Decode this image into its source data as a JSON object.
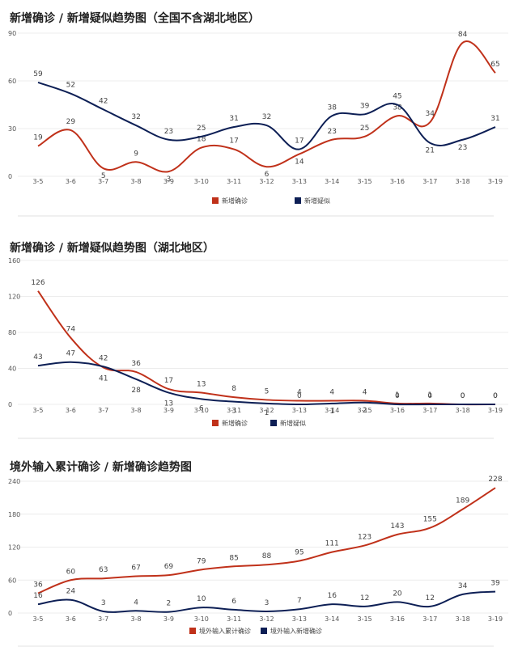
{
  "chart_data": [
    {
      "type": "line",
      "title": "新增确诊 / 新增疑似趋势图（全国不含湖北地区）",
      "categories": [
        "3-5",
        "3-6",
        "3-7",
        "3-8",
        "3-9",
        "3-10",
        "3-11",
        "3-12",
        "3-13",
        "3-14",
        "3-15",
        "3-16",
        "3-17",
        "3-18",
        "3-19"
      ],
      "ylim": [
        0,
        90
      ],
      "yticks": [
        0,
        30,
        60,
        90
      ],
      "grid": true,
      "legend_position": "bottom",
      "series": [
        {
          "name": "新增确诊",
          "color": "#c0311a",
          "values": [
            19,
            29,
            5,
            9,
            3,
            18,
            17,
            6,
            14,
            23,
            25,
            38,
            34,
            84,
            65
          ]
        },
        {
          "name": "新增疑似",
          "color": "#0d1f55",
          "values": [
            59,
            52,
            42,
            32,
            23,
            25,
            31,
            32,
            17,
            38,
            39,
            45,
            21,
            23,
            31
          ]
        }
      ]
    },
    {
      "type": "line",
      "title": "新增确诊 / 新增疑似趋势图（湖北地区）",
      "categories": [
        "3-5",
        "3-6",
        "3-7",
        "3-8",
        "3-9",
        "3-10",
        "3-11",
        "3-12",
        "3-13",
        "3-14",
        "3-15",
        "3-16",
        "3-17",
        "3-18",
        "3-19"
      ],
      "ylim": [
        0,
        160
      ],
      "yticks": [
        0,
        40,
        80,
        120,
        160
      ],
      "grid": true,
      "legend_position": "bottom",
      "series": [
        {
          "name": "新增确诊",
          "color": "#c0311a",
          "values": [
            126,
            74,
            41,
            36,
            17,
            13,
            8,
            5,
            4,
            4,
            4,
            1,
            1,
            0,
            0
          ]
        },
        {
          "name": "新增疑似",
          "color": "#0d1f55",
          "values": [
            43,
            47,
            42,
            28,
            13,
            6,
            3,
            1,
            0,
            1,
            2,
            0,
            0,
            0,
            0
          ]
        }
      ]
    },
    {
      "type": "line",
      "title": "境外输入累计确诊 / 新增确诊趋势图",
      "categories": [
        "3-5",
        "3-6",
        "3-7",
        "3-8",
        "3-9",
        "3-10",
        "3-11",
        "3-12",
        "3-13",
        "3-14",
        "3-15",
        "3-16",
        "3-17",
        "3-18",
        "3-19"
      ],
      "ylim": [
        0,
        240
      ],
      "yticks": [
        0,
        60,
        120,
        180,
        240
      ],
      "grid": true,
      "legend_position": "bottom",
      "series": [
        {
          "name": "境外输入累计确诊",
          "color": "#c0311a",
          "values": [
            36,
            60,
            63,
            67,
            69,
            79,
            85,
            88,
            95,
            111,
            123,
            143,
            155,
            189,
            228
          ]
        },
        {
          "name": "境外输入新增确诊",
          "color": "#0d1f55",
          "values": [
            16,
            24,
            3,
            4,
            2,
            10,
            6,
            3,
            7,
            16,
            12,
            20,
            12,
            34,
            39
          ]
        }
      ]
    }
  ]
}
